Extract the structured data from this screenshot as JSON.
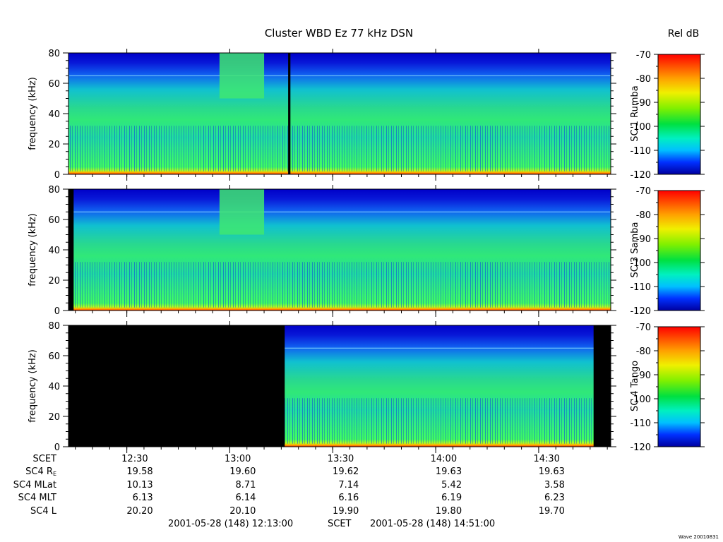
{
  "title": "Cluster WBD Ez 77 kHz DSN",
  "colorbar_title": "Rel dB",
  "credit": "Wave 20010831",
  "panels": [
    {
      "spacecraft": "SC 1 Rumba"
    },
    {
      "spacecraft": "SC 3 Samba"
    },
    {
      "spacecraft": "SC 4 Tango"
    }
  ],
  "colorbar_ticks": [
    "-70",
    "-80",
    "-90",
    "-100",
    "-110",
    "-120"
  ],
  "ephemeris": {
    "rows": [
      {
        "label": "SCET",
        "values": [
          "12:30",
          "13:00",
          "13:30",
          "14:00",
          "14:30"
        ]
      },
      {
        "label_main": "SC4 R",
        "label_sub": "E",
        "values": [
          "19.58",
          "19.60",
          "19.62",
          "19.63",
          "19.63"
        ]
      },
      {
        "label": "SC4 MLat",
        "values": [
          "10.13",
          "8.71",
          "7.14",
          "5.42",
          "3.58"
        ]
      },
      {
        "label": "SC4 MLT",
        "values": [
          "6.13",
          "6.14",
          "6.16",
          "6.19",
          "6.23"
        ]
      },
      {
        "label": "SC4 L",
        "values": [
          "20.20",
          "20.10",
          "19.90",
          "19.80",
          "19.70"
        ]
      }
    ]
  },
  "footer": {
    "start": "2001-05-28 (148) 12:13:00",
    "mid": "SCET",
    "end": "2001-05-28 (148) 14:51:00"
  },
  "chart_data": {
    "type": "heatmap",
    "title": "Cluster WBD Ez 77 kHz DSN",
    "ylabel": "frequency (kHz)",
    "ylim": [
      0,
      80
    ],
    "y_ticks": [
      0,
      20,
      40,
      60,
      80
    ],
    "x_range": [
      "12:13:00",
      "14:51:00"
    ],
    "x_ticks": [
      "12:30",
      "13:00",
      "13:30",
      "14:00",
      "14:30"
    ],
    "colorbar": {
      "label": "Rel dB",
      "range": [
        -120,
        -70
      ],
      "ticks": [
        -70,
        -80,
        -90,
        -100,
        -110,
        -120
      ]
    },
    "panels": [
      {
        "name": "SC 1 Rumba",
        "data_gaps": [
          [
            "13:17:00",
            "13:17:40"
          ]
        ]
      },
      {
        "name": "SC 3 Samba",
        "data_gaps": [
          [
            "12:13:00",
            "12:14:30"
          ]
        ]
      },
      {
        "name": "SC 4 Tango",
        "data_gaps": [
          [
            "12:13:00",
            "13:16:00"
          ],
          [
            "14:46:00",
            "14:51:00"
          ]
        ]
      }
    ]
  }
}
